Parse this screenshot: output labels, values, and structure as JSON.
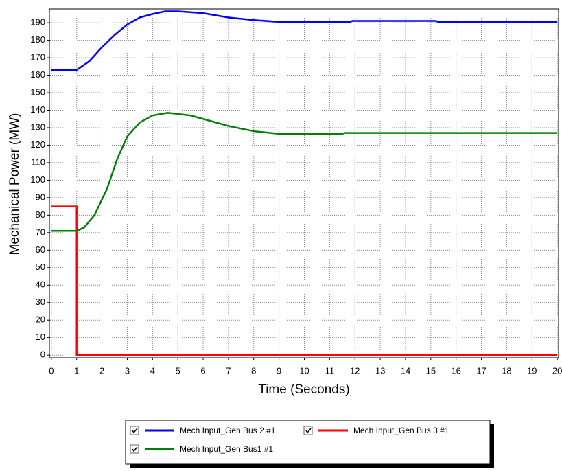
{
  "chart_data": {
    "type": "line",
    "x_label": "Time (Seconds)",
    "y_label": "Mechanical Power (MW)",
    "xlim": [
      -0.05,
      20.05
    ],
    "ylim": [
      -1.5,
      197.5
    ],
    "xticks": [
      0,
      1,
      2,
      3,
      4,
      5,
      6,
      7,
      8,
      9,
      10,
      11,
      12,
      13,
      14,
      15,
      16,
      17,
      18,
      19,
      20
    ],
    "yticks": [
      0,
      10,
      20,
      30,
      40,
      50,
      60,
      70,
      80,
      90,
      100,
      110,
      120,
      130,
      140,
      150,
      160,
      170,
      180,
      190
    ],
    "grid": true,
    "series": [
      {
        "name": "Mech Input_Gen Bus 2 #1",
        "color": "#0000ff",
        "x": [
          0,
          1,
          1.5,
          2,
          2.5,
          3,
          3.5,
          4,
          4.5,
          5,
          6,
          7,
          8,
          9,
          11.8,
          11.9,
          15.2,
          15.3,
          20
        ],
        "values": [
          163,
          163,
          168,
          176,
          183,
          189,
          193,
          195,
          196.5,
          196.5,
          195.5,
          193,
          191.5,
          190.5,
          190.5,
          191,
          191,
          190.5,
          190.5
        ]
      },
      {
        "name": "Mech Input_Gen Bus 3 #1",
        "color": "#ff0000",
        "x": [
          0,
          1,
          1,
          20
        ],
        "values": [
          85,
          85,
          0,
          0
        ]
      },
      {
        "name": "Mech Input_Gen Bus1 #1",
        "color": "#008000",
        "x": [
          0,
          1,
          1.3,
          1.7,
          2.2,
          2.6,
          3,
          3.5,
          4,
          4.6,
          5.5,
          6,
          7,
          8,
          9,
          11.5,
          11.6,
          20
        ],
        "values": [
          71,
          71,
          73,
          80,
          95,
          112,
          125,
          133,
          137,
          138.5,
          137,
          135,
          131,
          128,
          126.5,
          126.5,
          127,
          127
        ]
      }
    ]
  }
}
